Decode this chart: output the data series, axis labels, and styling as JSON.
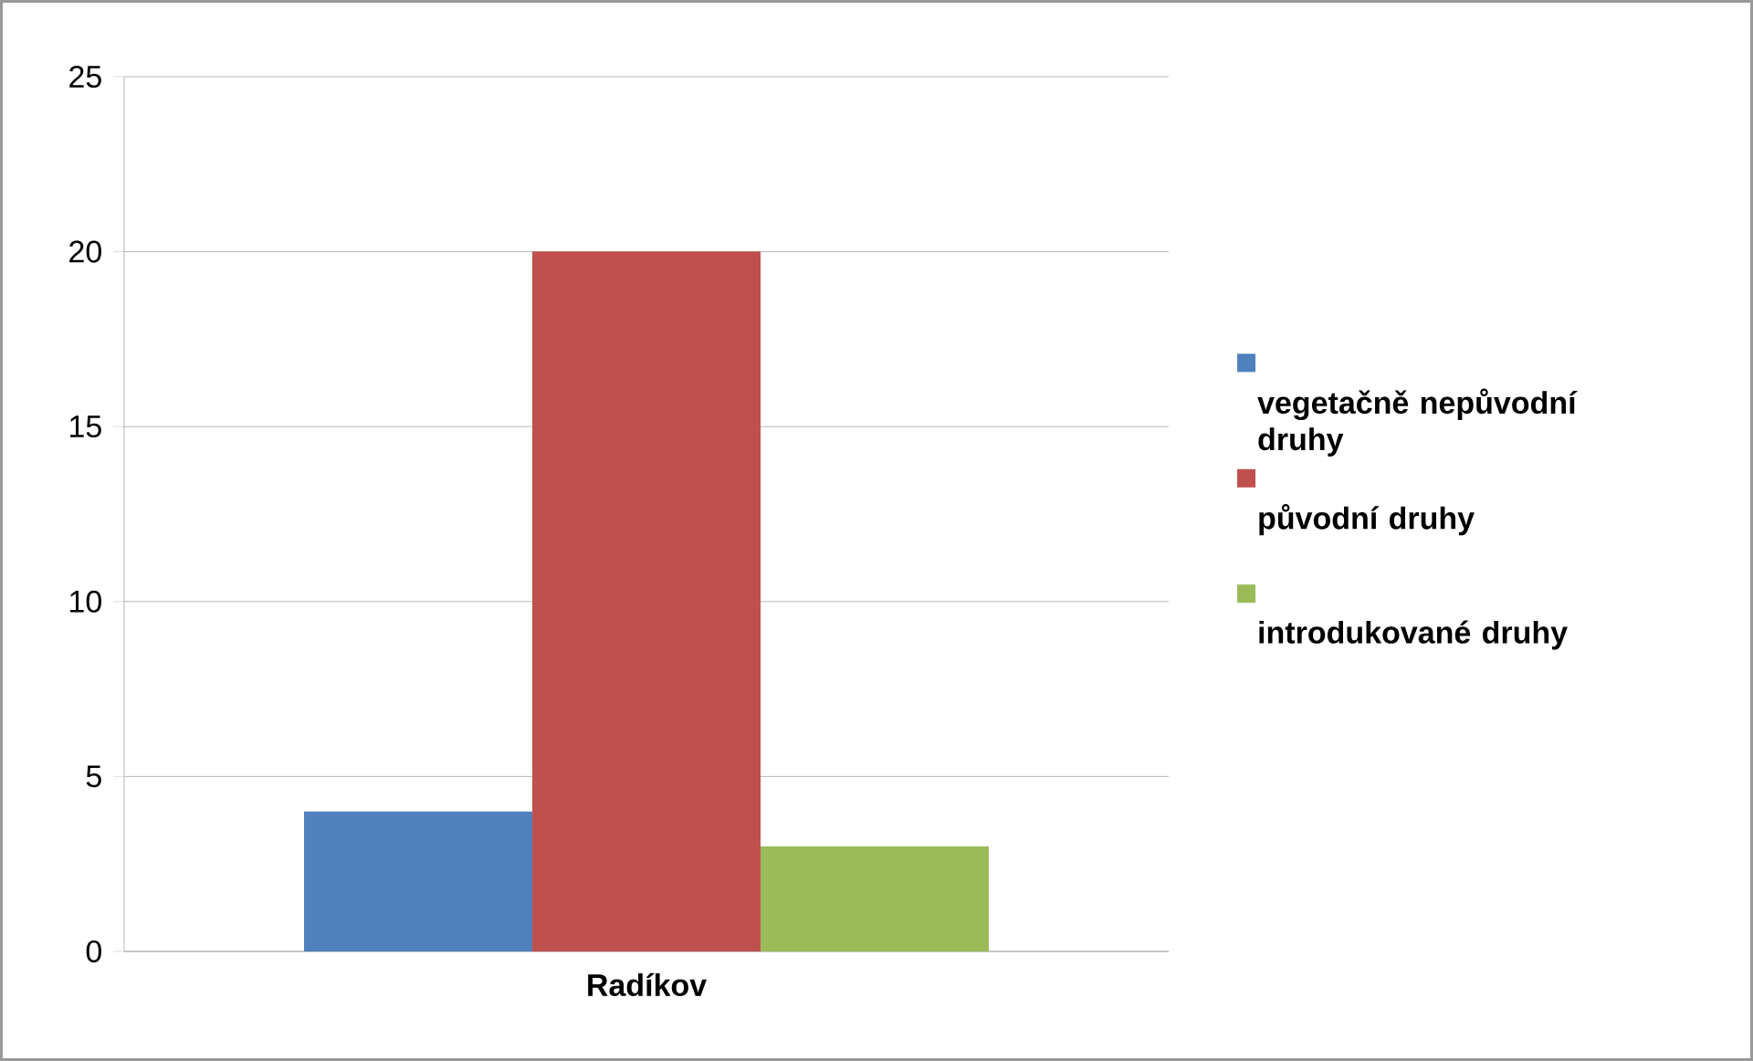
{
  "chart_data": {
    "type": "bar",
    "categories": [
      "Radíkov"
    ],
    "series": [
      {
        "name": "vegetačně nepůvodní druhy",
        "color": "#4f81bd",
        "values": [
          4
        ]
      },
      {
        "name": "původní druhy",
        "color": "#c0504d",
        "values": [
          20
        ]
      },
      {
        "name": "introdukované druhy",
        "color": "#9bbb59",
        "values": [
          3
        ]
      }
    ],
    "ylim": [
      0,
      25
    ],
    "yticks": [
      0,
      5,
      10,
      15,
      20,
      25
    ],
    "grid": "y",
    "legend": "right"
  }
}
